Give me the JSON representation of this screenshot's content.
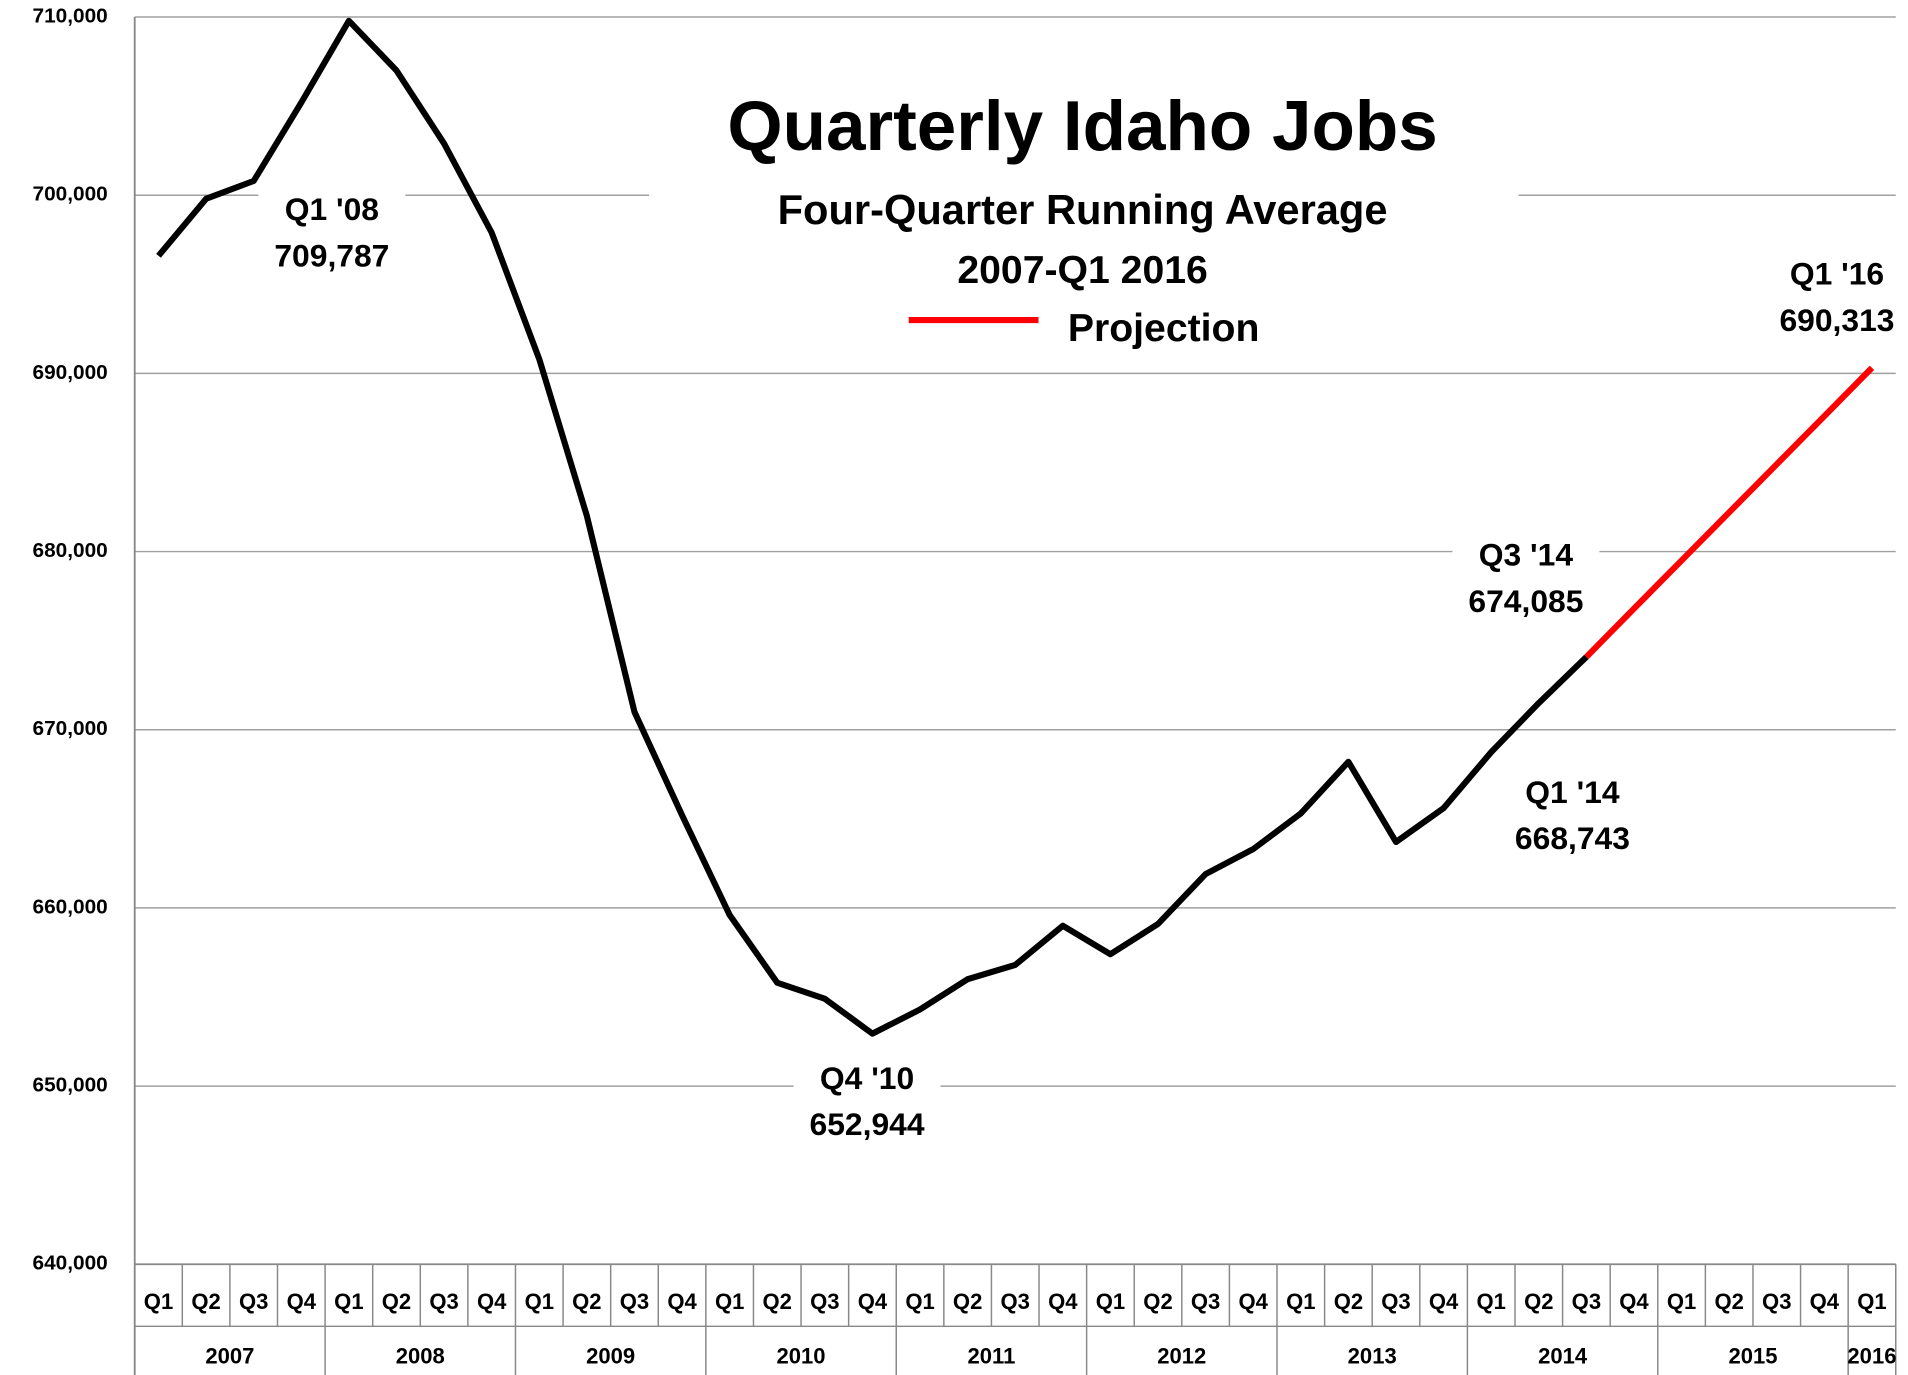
{
  "chart_data": {
    "type": "line",
    "title": "Quarterly Idaho Jobs",
    "subtitle": "Four-Quarter Running Average",
    "subtitle2": "2007-Q1 2016",
    "categories": [
      "Q1",
      "Q2",
      "Q3",
      "Q4",
      "Q1",
      "Q2",
      "Q3",
      "Q4",
      "Q1",
      "Q2",
      "Q3",
      "Q4",
      "Q1",
      "Q2",
      "Q3",
      "Q4",
      "Q1",
      "Q2",
      "Q3",
      "Q4",
      "Q1",
      "Q2",
      "Q3",
      "Q4",
      "Q1",
      "Q2",
      "Q3",
      "Q4",
      "Q1",
      "Q2",
      "Q3",
      "Q4",
      "Q1",
      "Q2",
      "Q3",
      "Q4",
      "Q1"
    ],
    "groups": [
      {
        "label": "2007",
        "count": 4
      },
      {
        "label": "2008",
        "count": 4
      },
      {
        "label": "2009",
        "count": 4
      },
      {
        "label": "2010",
        "count": 4
      },
      {
        "label": "2011",
        "count": 4
      },
      {
        "label": "2012",
        "count": 4
      },
      {
        "label": "2013",
        "count": 4
      },
      {
        "label": "2014",
        "count": 4
      },
      {
        "label": "2015",
        "count": 4
      },
      {
        "label": "2016",
        "count": 1
      }
    ],
    "series": [
      {
        "color": "#000000",
        "values": [
          696600,
          699800,
          700800,
          705200,
          709787,
          707000,
          702900,
          697900,
          690800,
          682000,
          671000,
          665200,
          659600,
          655800,
          654900,
          652944,
          654300,
          656000,
          656800,
          659000,
          657400,
          659100,
          661900,
          663300,
          665300,
          668200,
          663700,
          665600,
          668743,
          671500,
          674085,
          null,
          null,
          null,
          null,
          null,
          null
        ]
      },
      {
        "name": "Projection",
        "color": "#ff0000",
        "values": [
          null,
          null,
          null,
          null,
          null,
          null,
          null,
          null,
          null,
          null,
          null,
          null,
          null,
          null,
          null,
          null,
          null,
          null,
          null,
          null,
          null,
          null,
          null,
          null,
          null,
          null,
          null,
          null,
          null,
          null,
          674085,
          676800,
          679500,
          682200,
          684900,
          687600,
          690313
        ]
      }
    ],
    "annotations": [
      {
        "lines": [
          "Q1 '08",
          "709,787"
        ]
      },
      {
        "lines": [
          "Q4 '10",
          "652,944"
        ]
      },
      {
        "lines": [
          "Q3 '14",
          "674,085"
        ]
      },
      {
        "lines": [
          "Q1 '14",
          "668,743"
        ]
      },
      {
        "lines": [
          "Q1 '16",
          "690,313"
        ]
      }
    ],
    "ylim": [
      640000,
      710000
    ],
    "yticks": [
      {
        "value": 640000,
        "label": "640,000"
      },
      {
        "value": 650000,
        "label": "650,000"
      },
      {
        "value": 660000,
        "label": "660,000"
      },
      {
        "value": 670000,
        "label": "670,000"
      },
      {
        "value": 680000,
        "label": "680,000"
      },
      {
        "value": 690000,
        "label": "690,000"
      },
      {
        "value": 700000,
        "label": "700,000"
      },
      {
        "value": 710000,
        "label": "710,000"
      }
    ],
    "grid": true
  }
}
